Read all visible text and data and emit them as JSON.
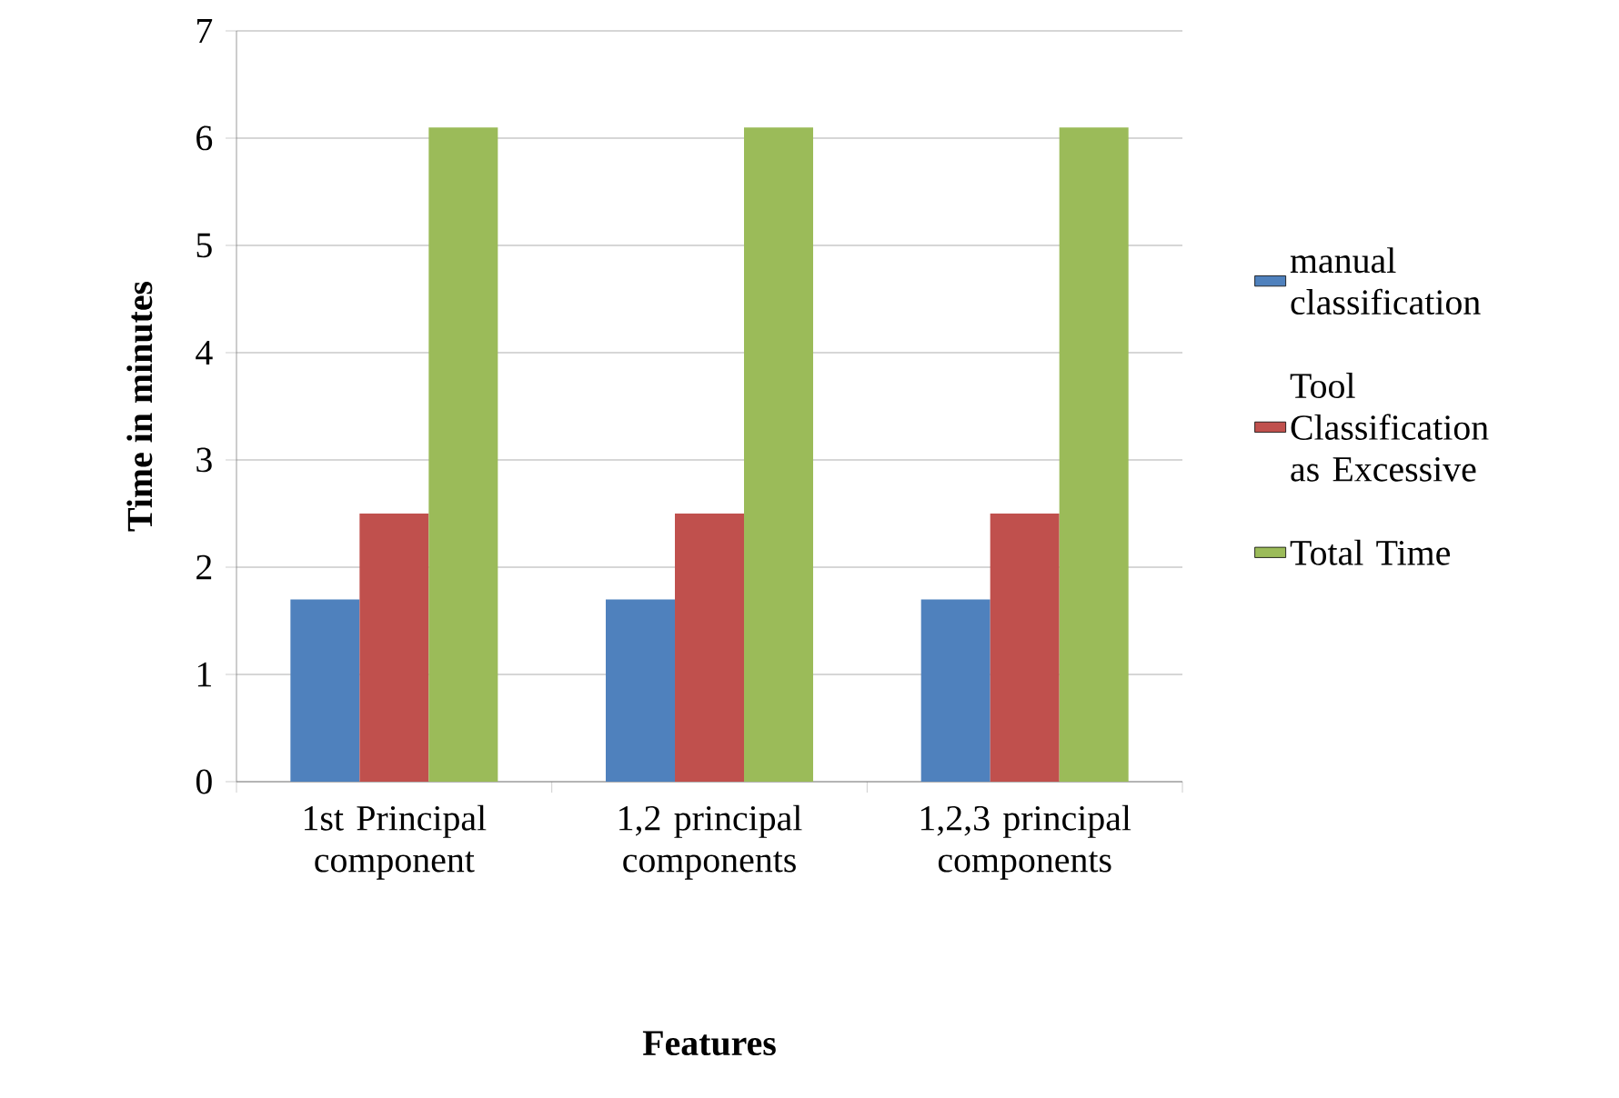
{
  "chart_data": {
    "type": "bar",
    "xlabel": "Features",
    "ylabel": "Time in minutes",
    "categories": [
      "1st Principal component",
      "1,2 principal components",
      "1,2,3 principal components"
    ],
    "series": [
      {
        "name": "manual classification",
        "color": "#4f81bd",
        "values": [
          1.7,
          1.7,
          1.7
        ]
      },
      {
        "name": "Tool Classification as Excessive",
        "color": "#c0504d",
        "values": [
          2.5,
          2.5,
          2.5
        ]
      },
      {
        "name": "Total Time",
        "color": "#9bbb59",
        "values": [
          6.1,
          6.1,
          6.1
        ]
      }
    ],
    "ylim": [
      0,
      7
    ],
    "yticks": [
      0,
      1,
      2,
      3,
      4,
      5,
      6,
      7
    ],
    "grid": "y",
    "legend": "right"
  }
}
